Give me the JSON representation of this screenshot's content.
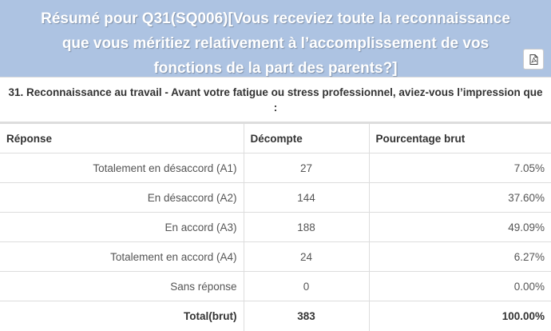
{
  "header": {
    "title": "Résumé pour Q31(SQ006)[Vous receviez toute la reconnaissance que vous méritiez relativement à l’accomplissement de vos fonctions de la part des parents?]",
    "pdf_icon": "pdf-file-icon"
  },
  "question": "31. Reconnaissance au travail - Avant votre fatigue ou stress professionnel, aviez-vous l’impression que :",
  "table": {
    "columns": [
      "Réponse",
      "Décompte",
      "Pourcentage brut"
    ],
    "rows": [
      {
        "answer": "Totalement en désaccord (A1)",
        "count": "27",
        "percent": "7.05%"
      },
      {
        "answer": "En désaccord (A2)",
        "count": "144",
        "percent": "37.60%"
      },
      {
        "answer": "En accord (A3)",
        "count": "188",
        "percent": "49.09%"
      },
      {
        "answer": "Totalement en accord (A4)",
        "count": "24",
        "percent": "6.27%"
      },
      {
        "answer": "Sans réponse",
        "count": "0",
        "percent": "0.00%"
      }
    ],
    "total": {
      "answer": "Total(brut)",
      "count": "383",
      "percent": "100.00%"
    }
  },
  "colors": {
    "header_bg": "#adc3e2"
  }
}
